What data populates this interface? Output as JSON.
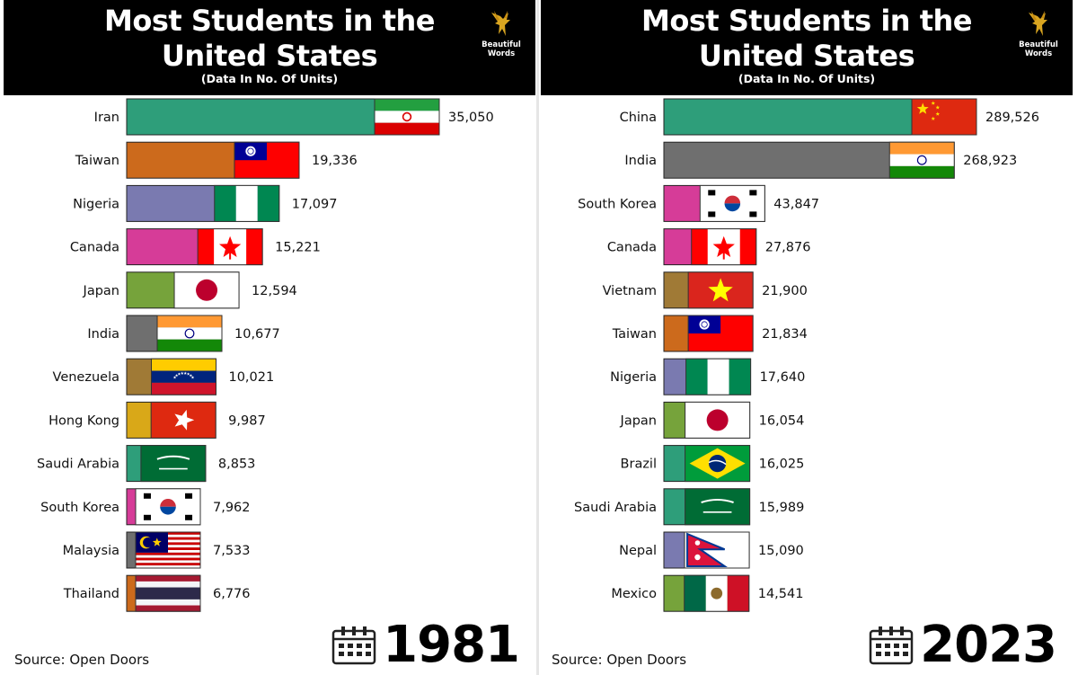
{
  "brand": {
    "line1": "Beautiful",
    "line2": "Words"
  },
  "chart_data": [
    {
      "type": "bar",
      "orientation": "horizontal",
      "title": "Most Students in the United States",
      "subtitle": "(Data In No. Of Units)",
      "year": "1981",
      "source": "Source: Open Doors",
      "categories": [
        "Iran",
        "Taiwan",
        "Nigeria",
        "Canada",
        "Japan",
        "India",
        "Venezuela",
        "Hong Kong",
        "Saudi Arabia",
        "South Korea",
        "Malaysia",
        "Thailand"
      ],
      "values": [
        35050,
        19336,
        17097,
        15221,
        12594,
        10677,
        10021,
        9987,
        8853,
        7962,
        7533,
        6776
      ],
      "value_labels": [
        "35,050",
        "19,336",
        "17,097",
        "15,221",
        "12,594",
        "10,677",
        "10,021",
        "9,987",
        "8,853",
        "7,962",
        "7,533",
        "6,776"
      ],
      "bar_colors": [
        "#2e9e7a",
        "#cc6a1c",
        "#7a7ab0",
        "#d63c98",
        "#76a33b",
        "#6f6f6f",
        "#a07a36",
        "#d9a818",
        "#2e9e7a",
        "#d63c98",
        "#6f6f6f",
        "#cc6a1c"
      ],
      "flags": [
        "iran",
        "taiwan",
        "nigeria",
        "canada",
        "japan",
        "india",
        "venezuela",
        "hong-kong",
        "saudi-arabia",
        "south-korea",
        "malaysia",
        "thailand"
      ],
      "xlim": [
        0,
        35050
      ]
    },
    {
      "type": "bar",
      "orientation": "horizontal",
      "title": "Most Students in the United States",
      "subtitle": "(Data In No. Of Units)",
      "year": "2023",
      "source": "Source: Open Doors",
      "categories": [
        "China",
        "India",
        "South Korea",
        "Canada",
        "Vietnam",
        "Taiwan",
        "Nigeria",
        "Japan",
        "Brazil",
        "Saudi Arabia",
        "Nepal",
        "Mexico"
      ],
      "values": [
        289526,
        268923,
        43847,
        27876,
        21900,
        21834,
        17640,
        16054,
        16025,
        15989,
        15090,
        14541
      ],
      "value_labels": [
        "289,526",
        "268,923",
        "43,847",
        "27,876",
        "21,900",
        "21,834",
        "17,640",
        "16,054",
        "16,025",
        "15,989",
        "15,090",
        "14,541"
      ],
      "bar_colors": [
        "#2e9e7a",
        "#6f6f6f",
        "#d63c98",
        "#d63c98",
        "#a07a36",
        "#cc6a1c",
        "#7a7ab0",
        "#76a33b",
        "#2e9e7a",
        "#2e9e7a",
        "#7a7ab0",
        "#76a33b"
      ],
      "flags": [
        "china",
        "india",
        "south-korea",
        "canada",
        "vietnam",
        "taiwan",
        "nigeria",
        "japan",
        "brazil",
        "saudi-arabia",
        "nepal",
        "mexico"
      ],
      "xlim": [
        0,
        289526
      ]
    }
  ]
}
